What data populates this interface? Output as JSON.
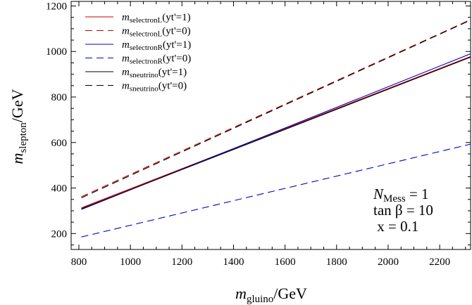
{
  "chart_data": {
    "type": "line",
    "xlabel": {
      "main": "m",
      "sub": "gluino",
      "unit": "/GeV"
    },
    "ylabel": {
      "main": "m",
      "sub": "slepton",
      "unit": "/GeV"
    },
    "xlim": [
      770,
      2320
    ],
    "ylim": [
      130,
      1220
    ],
    "x_ticks": [
      800,
      1000,
      1200,
      1400,
      1600,
      1800,
      2000,
      2200
    ],
    "y_ticks": [
      200,
      400,
      600,
      800,
      1000,
      1200
    ],
    "legend_position": "top-left",
    "series": [
      {
        "key": "selL_1",
        "name_main": "m",
        "name_sub": "selectronL",
        "name_suffix": "(yt'=1)",
        "color": "#cc0000",
        "dash": "solid",
        "x": [
          810,
          2320
        ],
        "y": [
          313,
          978
        ]
      },
      {
        "key": "selL_0",
        "name_main": "m",
        "name_sub": "selectronL",
        "name_suffix": "(yt'=0)",
        "color": "#cc0000",
        "dash": "dashed",
        "x": [
          810,
          2320
        ],
        "y": [
          362,
          1140
        ]
      },
      {
        "key": "selR_1",
        "name_main": "m",
        "name_sub": "selectronR",
        "name_suffix": "(yt'=1)",
        "color": "#0000cc",
        "dash": "solid",
        "x": [
          810,
          2320
        ],
        "y": [
          306,
          990
        ]
      },
      {
        "key": "selR_0",
        "name_main": "m",
        "name_sub": "selectronR",
        "name_suffix": "(yt'=0)",
        "color": "#0000cc",
        "dash": "dashed",
        "x": [
          810,
          2320
        ],
        "y": [
          185,
          593
        ]
      },
      {
        "key": "snu_1",
        "name_main": "m",
        "name_sub": "sneutrino",
        "name_suffix": "(yt'=1)",
        "color": "#000000",
        "dash": "solid",
        "x": [
          810,
          2320
        ],
        "y": [
          309,
          975
        ]
      },
      {
        "key": "snu_0",
        "name_main": "m",
        "name_sub": "sneutrino",
        "name_suffix": "(yt'=0)",
        "color": "#000000",
        "dash": "dashed",
        "x": [
          810,
          2320
        ],
        "y": [
          357,
          1138
        ]
      }
    ],
    "annotations": {
      "line1_main": "N",
      "line1_sub": "Mess",
      "line1_rest": " = 1",
      "line2": "tan β = 10",
      "line3": " x = 0.1"
    }
  }
}
